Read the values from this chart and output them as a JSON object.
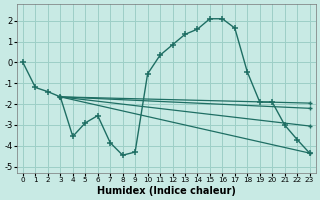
{
  "bg_color": "#c8eae4",
  "grid_color": "#9dcfc7",
  "line_color": "#1e6e63",
  "xlabel": "Humidex (Indice chaleur)",
  "xlim": [
    -0.5,
    23.5
  ],
  "ylim": [
    -5.3,
    2.8
  ],
  "xticks": [
    0,
    1,
    2,
    3,
    4,
    5,
    6,
    7,
    8,
    9,
    10,
    11,
    12,
    13,
    14,
    15,
    16,
    17,
    18,
    19,
    20,
    21,
    22,
    23
  ],
  "yticks": [
    -5,
    -4,
    -3,
    -2,
    -1,
    0,
    1,
    2
  ],
  "main_line": {
    "x": [
      0,
      1,
      2,
      3,
      4,
      5,
      6,
      7,
      8,
      9,
      10,
      11,
      12,
      13,
      14,
      15,
      16,
      17,
      18,
      19,
      20,
      21,
      22,
      23
    ],
    "y": [
      0,
      -1.2,
      -1.4,
      -1.65,
      -3.55,
      -2.9,
      -2.55,
      -3.85,
      -4.45,
      -4.3,
      -0.55,
      0.35,
      0.85,
      1.35,
      1.6,
      2.1,
      2.1,
      1.65,
      -0.45,
      -1.9,
      -1.9,
      -3.0,
      -3.7,
      -4.35
    ]
  },
  "trend_lines": [
    {
      "x": [
        3,
        23
      ],
      "y": [
        -1.65,
        -1.95
      ]
    },
    {
      "x": [
        3,
        23
      ],
      "y": [
        -1.65,
        -2.2
      ]
    },
    {
      "x": [
        3,
        23
      ],
      "y": [
        -1.65,
        -3.05
      ]
    },
    {
      "x": [
        3,
        23
      ],
      "y": [
        -1.65,
        -4.35
      ]
    }
  ]
}
